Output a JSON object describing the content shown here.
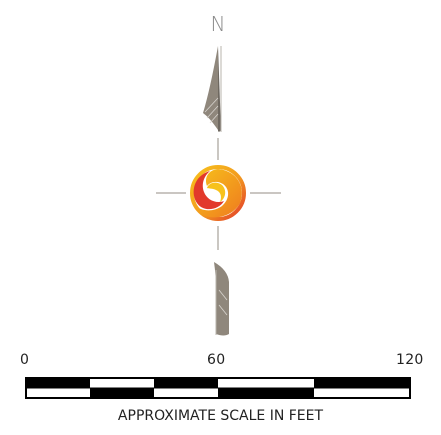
{
  "compass": {
    "north_label": "N",
    "logo_icon": "flame-swirl-logo-icon",
    "colors": {
      "needle": "#8f877c",
      "needle_dark": "#6e6860",
      "cross_lines": "#b9b4ad",
      "logo_orange": "#f29a1f",
      "logo_red": "#e2392b",
      "logo_yellow": "#f7c21c"
    }
  },
  "scale": {
    "tick_labels": [
      "0",
      "60",
      "120"
    ],
    "caption": "APPROXIMATE SCALE IN FEET",
    "units": "feet",
    "range": [
      0,
      120
    ],
    "segments": 6,
    "colors": {
      "dark": "#000000",
      "light": "#ffffff"
    }
  }
}
